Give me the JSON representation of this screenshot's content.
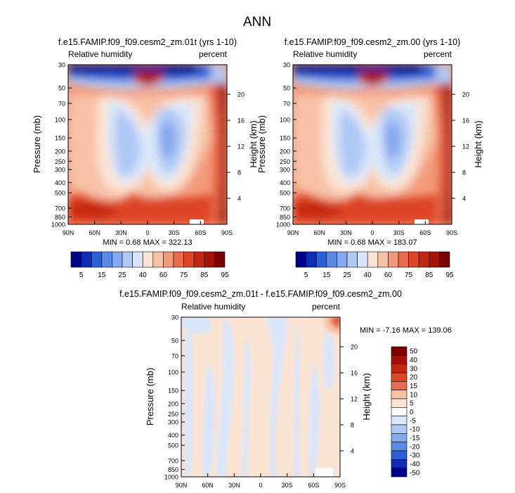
{
  "figure": {
    "title": "ANN"
  },
  "chart_data": [
    {
      "type": "contour",
      "title": "f.e15.FAMIP.f09_f09.cesm2_zm.01t (yrs 1-10)",
      "left_label": "Relative humidity",
      "right_label": "percent",
      "ylabel": "Pressure (mb)",
      "y2label": "Height (km)",
      "x_ticks": [
        "90N",
        "60N",
        "30N",
        "0",
        "30S",
        "60S",
        "90S"
      ],
      "y_ticks": [
        30,
        50,
        70,
        100,
        150,
        200,
        250,
        300,
        400,
        500,
        700,
        850,
        1000
      ],
      "height_ticks": [
        4,
        8,
        12,
        16,
        20
      ],
      "stats": "MIN =  0.68  MAX = 322.13",
      "colorbar_labels": [
        "5",
        "15",
        "25",
        "40",
        "60",
        "75",
        "85",
        "95"
      ]
    },
    {
      "type": "contour",
      "title": "f.e15.FAMIP.f09_f09.cesm2_zm.00 (yrs 1-10)",
      "left_label": "Relative humidity",
      "right_label": "percent",
      "ylabel": "Pressure (mb)",
      "y2label": "Height (km)",
      "x_ticks": [
        "90N",
        "60N",
        "30N",
        "0",
        "30S",
        "60S",
        "90S"
      ],
      "y_ticks": [
        30,
        50,
        70,
        100,
        150,
        200,
        250,
        300,
        400,
        500,
        700,
        850,
        1000
      ],
      "height_ticks": [
        4,
        8,
        12,
        16,
        20
      ],
      "stats": "MIN =  0.68  MAX = 183.07",
      "colorbar_labels": [
        "5",
        "15",
        "25",
        "40",
        "60",
        "75",
        "85",
        "95"
      ]
    },
    {
      "type": "contour",
      "title": "f.e15.FAMIP.f09_f09.cesm2_zm.01t - f.e15.FAMIP.f09_f09.cesm2_zm.00",
      "left_label": "Relative humidity",
      "right_label": "percent",
      "ylabel": "Pressure (mb)",
      "y2label": "Height (km)",
      "x_ticks": [
        "90N",
        "60N",
        "30N",
        "0",
        "30S",
        "60S",
        "90S"
      ],
      "y_ticks": [
        30,
        50,
        70,
        100,
        150,
        200,
        250,
        300,
        400,
        500,
        700,
        850,
        1000
      ],
      "height_ticks": [
        4,
        8,
        12,
        16,
        20
      ],
      "stats": "MIN = -7.16  MAX = 139.06",
      "colorbar_labels": [
        "50",
        "40",
        "30",
        "20",
        "15",
        "10",
        "5",
        "0",
        "-5",
        "-10",
        "-15",
        "-20",
        "-30",
        "-40",
        "-50"
      ]
    }
  ],
  "palette": {
    "abs": [
      "#00008b",
      "#0d2bb5",
      "#2b5fd8",
      "#5a8ae6",
      "#85a8ee",
      "#b0c8f4",
      "#d8e6fb",
      "#fbe3d3",
      "#f7c1a6",
      "#f29a7a",
      "#ea6c4d",
      "#dd4527",
      "#c52711",
      "#a3130a",
      "#7f0000"
    ],
    "diff": [
      "#7f0000",
      "#a3130a",
      "#c52711",
      "#dd4527",
      "#ea6c4d",
      "#f7c1a6",
      "#fbe3d3",
      "#fbfbfb",
      "#d8e6fb",
      "#b0c8f4",
      "#85a8ee",
      "#5a8ae6",
      "#2b5fd8",
      "#0d2bb5",
      "#00008b"
    ]
  }
}
